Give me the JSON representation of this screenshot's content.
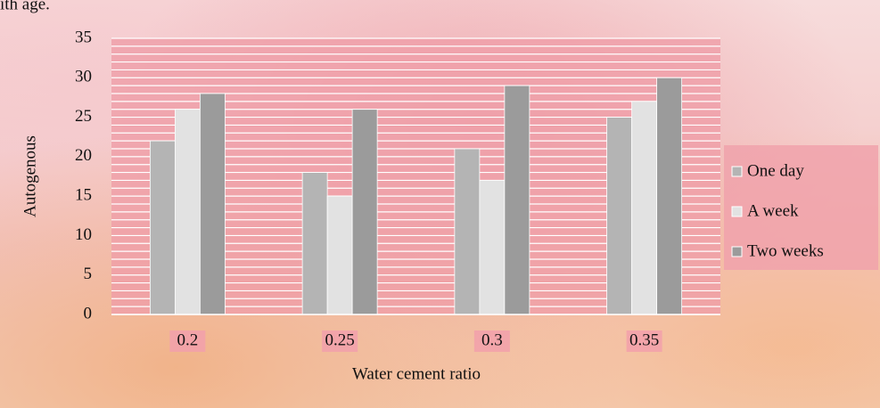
{
  "caption_fragment": "ith age.",
  "chart_data": {
    "type": "bar",
    "x_label": "Water cement ratio",
    "y_label": "Autogenous",
    "categories": [
      "0.2",
      "0.25",
      "0.3",
      "0.35"
    ],
    "series": [
      {
        "name": "One day",
        "color": "#b4b4b4",
        "values": [
          22,
          18,
          21,
          25
        ]
      },
      {
        "name": "A week",
        "color": "#e2e2e2",
        "values": [
          26,
          15,
          17,
          27
        ]
      },
      {
        "name": "Two weeks",
        "color": "#9b9b9b",
        "values": [
          28,
          26,
          29,
          30
        ]
      }
    ],
    "ylim": [
      0,
      35
    ],
    "yticks": [
      0,
      5,
      10,
      15,
      20,
      25,
      30,
      35
    ],
    "grid": true,
    "minor_grid": true,
    "legend": "right"
  }
}
